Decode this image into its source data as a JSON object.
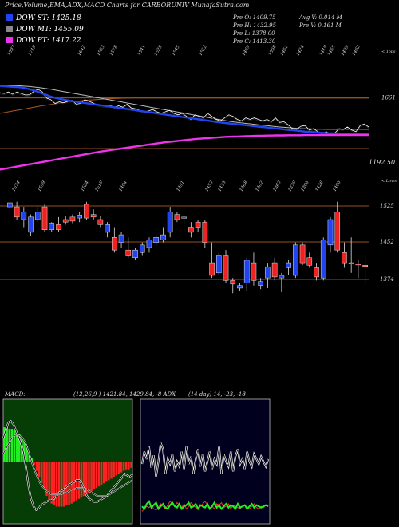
{
  "header": {
    "title": "Price,Volume,EMA,ADX,MACD Charts for CARBORUNIV MunafaSutra.com"
  },
  "legend": [
    {
      "label": "DOW ST: 1425.18",
      "color": "#2244ee"
    },
    {
      "label": "DOW MT: 1455.09",
      "color": "#888888"
    },
    {
      "label": "DOW PT: 1417.22",
      "color": "#ee33ee"
    }
  ],
  "stats": {
    "pre_o": "Pre   O: 1409.75",
    "pre_h": "Pre   H: 1432.95",
    "pre_l": "Pre   L: 1378.00",
    "pre_c": "Pre   C: 1413.30",
    "avg_v": "Avg V: 0.014   M",
    "pre_v": "Pre   V: 0.161 M"
  },
  "ema_panel": {
    "top_labels": [
      "1697",
      "1719",
      "1642",
      "1553",
      "1578",
      "1541",
      "1525",
      "1545",
      "1522",
      "1469",
      "1508",
      "1451",
      "1424",
      "1419",
      "1455",
      "1429",
      "1462"
    ],
    "bottom_labels": [
      "1674",
      "1599",
      "1524",
      "1519",
      "1494",
      "1491",
      "1453",
      "1423",
      "1468",
      "1402",
      "1363",
      "1379",
      "1396",
      "1426",
      "1490"
    ],
    "hline_labels": [
      "1661",
      "1192.50"
    ],
    "corner_label": "< Tops",
    "ema_ylim": [
      1150,
      1780
    ],
    "price_line": [
      1695,
      1690,
      1700,
      1685,
      1700,
      1690,
      1680,
      1682,
      1705,
      1718,
      1700,
      1660,
      1650,
      1625,
      1635,
      1630,
      1640,
      1645,
      1620,
      1625,
      1650,
      1640,
      1628,
      1615,
      1610,
      1605,
      1612,
      1600,
      1610,
      1600,
      1620,
      1595,
      1590,
      1580,
      1570,
      1575,
      1585,
      1570,
      1560,
      1570,
      1580,
      1560,
      1550,
      1560,
      1540,
      1520,
      1550,
      1540,
      1530,
      1560,
      1540,
      1520,
      1510,
      1530,
      1550,
      1540,
      1520,
      1510,
      1530,
      1520,
      1530,
      1520,
      1510,
      1520,
      1505,
      1530,
      1500,
      1505,
      1485,
      1460,
      1455,
      1475,
      1480,
      1450,
      1460,
      1440,
      1425,
      1440,
      1420,
      1430,
      1460,
      1455,
      1470,
      1450,
      1440,
      1480,
      1490,
      1470
    ],
    "ema_blue": [
      1740,
      1738,
      1736,
      1734,
      1732,
      1730,
      1725,
      1718,
      1710,
      1700,
      1690,
      1680,
      1670,
      1662,
      1656,
      1650,
      1645,
      1640,
      1636,
      1632,
      1628,
      1624,
      1620,
      1616,
      1612,
      1608,
      1604,
      1600,
      1596,
      1592,
      1588,
      1584,
      1580,
      1576,
      1572,
      1568,
      1564,
      1560,
      1556,
      1552,
      1548,
      1544,
      1540,
      1536,
      1532,
      1528,
      1524,
      1520,
      1516,
      1512,
      1508,
      1504,
      1500,
      1497,
      1494,
      1491,
      1488,
      1485,
      1482,
      1479,
      1476,
      1473,
      1470,
      1467,
      1464,
      1461,
      1458,
      1455,
      1452,
      1449,
      1446,
      1443,
      1440,
      1438,
      1436,
      1434,
      1432,
      1430,
      1429,
      1428,
      1427,
      1427,
      1426,
      1426,
      1425,
      1425,
      1425,
      1425
    ],
    "ema_grey": [
      1745,
      1744,
      1743,
      1742,
      1741,
      1740,
      1738,
      1736,
      1733,
      1730,
      1726,
      1722,
      1718,
      1713,
      1708,
      1703,
      1698,
      1693,
      1688,
      1683,
      1678,
      1673,
      1668,
      1663,
      1658,
      1653,
      1648,
      1643,
      1638,
      1633,
      1628,
      1623,
      1618,
      1613,
      1608,
      1603,
      1598,
      1593,
      1588,
      1583,
      1578,
      1573,
      1568,
      1563,
      1558,
      1553,
      1548,
      1543,
      1538,
      1533,
      1528,
      1523,
      1518,
      1513,
      1508,
      1504,
      1500,
      1497,
      1494,
      1491,
      1488,
      1485,
      1482,
      1479,
      1476,
      1473,
      1470,
      1468,
      1466,
      1464,
      1462,
      1460,
      1459,
      1458,
      1457,
      1456,
      1456,
      1455,
      1455,
      1455,
      1455,
      1455,
      1455,
      1455,
      1455,
      1455,
      1455,
      1455
    ],
    "ema_magenta": [
      1190,
      1195,
      1200,
      1205,
      1210,
      1215,
      1220,
      1225,
      1230,
      1235,
      1240,
      1245,
      1250,
      1255,
      1260,
      1265,
      1270,
      1275,
      1280,
      1285,
      1290,
      1295,
      1300,
      1305,
      1310,
      1314,
      1318,
      1322,
      1326,
      1330,
      1334,
      1338,
      1342,
      1346,
      1350,
      1354,
      1358,
      1362,
      1366,
      1370,
      1373,
      1376,
      1379,
      1382,
      1385,
      1388,
      1391,
      1393,
      1395,
      1397,
      1399,
      1401,
      1403,
      1405,
      1406,
      1407,
      1408,
      1409,
      1410,
      1411,
      1412,
      1413,
      1413,
      1414,
      1414,
      1415,
      1415,
      1415,
      1416,
      1416,
      1416,
      1416,
      1417,
      1417,
      1417,
      1417,
      1417,
      1417,
      1417,
      1417,
      1417,
      1417,
      1417,
      1417,
      1417,
      1417,
      1417,
      1417
    ],
    "ema_orange": [
      1560,
      1565,
      1570,
      1575,
      1580,
      1585,
      1590,
      1595,
      1600,
      1605,
      1610,
      1614,
      1618,
      1622,
      1626,
      1630,
      1633,
      1636,
      1639,
      1642,
      1645,
      1647,
      1649,
      1651,
      1653,
      1655,
      1656,
      1657,
      1658,
      1659,
      1660,
      1660,
      1661,
      1661,
      1661,
      1661,
      1661,
      1661,
      1661,
      1661,
      1661,
      1661,
      1661,
      1661,
      1661,
      1661,
      1661,
      1661,
      1661,
      1661,
      1661,
      1661,
      1661,
      1661,
      1661,
      1661,
      1661,
      1661,
      1661,
      1661,
      1661,
      1661,
      1661,
      1661,
      1661,
      1661,
      1661,
      1661,
      1661,
      1661,
      1661,
      1661,
      1661,
      1661,
      1661,
      1661,
      1661,
      1661,
      1661,
      1661,
      1661,
      1661,
      1661,
      1661,
      1661,
      1661,
      1661,
      1661
    ]
  },
  "candle_panel": {
    "hline_labels": [
      "1525",
      "1452",
      "1374"
    ],
    "corner_label": "< Lows",
    "ylim": [
      1340,
      1560
    ],
    "candles": [
      {
        "o": 1530,
        "h": 1545,
        "l": 1520,
        "c": 1538
      },
      {
        "o": 1530,
        "h": 1540,
        "l": 1505,
        "c": 1510
      },
      {
        "o": 1505,
        "h": 1530,
        "l": 1490,
        "c": 1520
      },
      {
        "o": 1480,
        "h": 1515,
        "l": 1472,
        "c": 1510
      },
      {
        "o": 1505,
        "h": 1530,
        "l": 1500,
        "c": 1520
      },
      {
        "o": 1530,
        "h": 1535,
        "l": 1480,
        "c": 1485
      },
      {
        "o": 1485,
        "h": 1500,
        "l": 1480,
        "c": 1498
      },
      {
        "o": 1495,
        "h": 1510,
        "l": 1480,
        "c": 1485
      },
      {
        "o": 1505,
        "h": 1512,
        "l": 1495,
        "c": 1500
      },
      {
        "o": 1510,
        "h": 1515,
        "l": 1498,
        "c": 1502
      },
      {
        "o": 1508,
        "h": 1520,
        "l": 1500,
        "c": 1514
      },
      {
        "o": 1535,
        "h": 1540,
        "l": 1505,
        "c": 1508
      },
      {
        "o": 1515,
        "h": 1525,
        "l": 1505,
        "c": 1510
      },
      {
        "o": 1505,
        "h": 1512,
        "l": 1490,
        "c": 1495
      },
      {
        "o": 1480,
        "h": 1500,
        "l": 1470,
        "c": 1495
      },
      {
        "o": 1470,
        "h": 1490,
        "l": 1440,
        "c": 1445
      },
      {
        "o": 1460,
        "h": 1480,
        "l": 1450,
        "c": 1475
      },
      {
        "o": 1445,
        "h": 1470,
        "l": 1430,
        "c": 1435
      },
      {
        "o": 1430,
        "h": 1450,
        "l": 1425,
        "c": 1445
      },
      {
        "o": 1440,
        "h": 1460,
        "l": 1435,
        "c": 1455
      },
      {
        "o": 1450,
        "h": 1470,
        "l": 1440,
        "c": 1465
      },
      {
        "o": 1460,
        "h": 1475,
        "l": 1455,
        "c": 1470
      },
      {
        "o": 1465,
        "h": 1490,
        "l": 1460,
        "c": 1475
      },
      {
        "o": 1480,
        "h": 1530,
        "l": 1470,
        "c": 1520
      },
      {
        "o": 1515,
        "h": 1520,
        "l": 1500,
        "c": 1505
      },
      {
        "o": 1510,
        "h": 1515,
        "l": 1495,
        "c": 1510
      },
      {
        "o": 1490,
        "h": 1500,
        "l": 1470,
        "c": 1480
      },
      {
        "o": 1500,
        "h": 1505,
        "l": 1480,
        "c": 1490
      },
      {
        "o": 1500,
        "h": 1505,
        "l": 1450,
        "c": 1460
      },
      {
        "o": 1420,
        "h": 1460,
        "l": 1390,
        "c": 1395
      },
      {
        "o": 1400,
        "h": 1440,
        "l": 1395,
        "c": 1435
      },
      {
        "o": 1435,
        "h": 1445,
        "l": 1380,
        "c": 1385
      },
      {
        "o": 1385,
        "h": 1390,
        "l": 1360,
        "c": 1378
      },
      {
        "o": 1370,
        "h": 1380,
        "l": 1365,
        "c": 1375
      },
      {
        "o": 1380,
        "h": 1430,
        "l": 1365,
        "c": 1425
      },
      {
        "o": 1420,
        "h": 1440,
        "l": 1375,
        "c": 1385
      },
      {
        "o": 1375,
        "h": 1390,
        "l": 1368,
        "c": 1383
      },
      {
        "o": 1390,
        "h": 1420,
        "l": 1370,
        "c": 1412
      },
      {
        "o": 1420,
        "h": 1430,
        "l": 1385,
        "c": 1392
      },
      {
        "o": 1390,
        "h": 1400,
        "l": 1362,
        "c": 1395
      },
      {
        "o": 1410,
        "h": 1425,
        "l": 1395,
        "c": 1420
      },
      {
        "o": 1395,
        "h": 1460,
        "l": 1390,
        "c": 1455
      },
      {
        "o": 1455,
        "h": 1460,
        "l": 1415,
        "c": 1420
      },
      {
        "o": 1430,
        "h": 1440,
        "l": 1410,
        "c": 1415
      },
      {
        "o": 1410,
        "h": 1420,
        "l": 1385,
        "c": 1392
      },
      {
        "o": 1390,
        "h": 1470,
        "l": 1385,
        "c": 1465
      },
      {
        "o": 1455,
        "h": 1510,
        "l": 1440,
        "c": 1505
      },
      {
        "o": 1520,
        "h": 1540,
        "l": 1440,
        "c": 1445
      },
      {
        "o": 1440,
        "h": 1460,
        "l": 1410,
        "c": 1420
      },
      {
        "o": 1420,
        "h": 1470,
        "l": 1400,
        "c": 1418
      },
      {
        "o": 1418,
        "h": 1425,
        "l": 1390,
        "c": 1416
      },
      {
        "o": 1415,
        "h": 1432,
        "l": 1378,
        "c": 1413
      }
    ]
  },
  "macd_panel": {
    "label": "MACD:",
    "values_text": "(12,26,9 ) 1421.84, 1429.84, -8  ADX",
    "ylim": [
      -4,
      4
    ],
    "hist": [
      2.2,
      2.2,
      2.1,
      2.1,
      2.0,
      1.9,
      1.8,
      1.6,
      1.3,
      1.0,
      0.6,
      0.2,
      -0.2,
      -0.6,
      -1.0,
      -1.4,
      -1.8,
      -2.2,
      -2.5,
      -2.7,
      -2.8,
      -2.9,
      -2.9,
      -2.9,
      -2.9,
      -2.8,
      -2.8,
      -2.7,
      -2.6,
      -2.5,
      -2.4,
      -2.3,
      -2.2,
      -2.1,
      -2.0,
      -1.9,
      -1.8,
      -1.7,
      -1.6,
      -1.5,
      -1.4,
      -1.3,
      -1.2,
      -1.1,
      -1.0,
      -0.9,
      -0.8,
      -0.7,
      -0.6,
      -0.5,
      -0.5,
      -0.4
    ],
    "macd": [
      1.5,
      2.0,
      2.5,
      2.6,
      2.4,
      2.0,
      1.6,
      1.2,
      0.6,
      -0.4,
      -1.6,
      -2.4,
      -2.9,
      -3.1,
      -3.0,
      -2.8,
      -2.7,
      -2.6,
      -2.5,
      -2.5,
      -2.4,
      -2.2,
      -2.0,
      -1.9,
      -1.8,
      -1.6,
      -1.5,
      -1.4,
      -1.3,
      -1.2,
      -1.2,
      -1.4,
      -1.8,
      -2.2,
      -2.4,
      -2.5,
      -2.6,
      -2.6,
      -2.5,
      -2.4,
      -2.3,
      -2.2,
      -2.0,
      -1.8,
      -1.6,
      -1.4,
      -1.2,
      -1.0,
      -0.8,
      -0.9,
      -1.0,
      -0.8
    ],
    "signal": [
      0.5,
      0.8,
      1.1,
      1.4,
      1.6,
      1.7,
      1.7,
      1.6,
      1.4,
      1.1,
      0.6,
      0.1,
      -0.4,
      -0.8,
      -1.2,
      -1.5,
      -1.7,
      -1.9,
      -2.0,
      -2.1,
      -2.1,
      -2.1,
      -2.1,
      -2.1,
      -2.0,
      -2.0,
      -1.9,
      -1.8,
      -1.8,
      -1.7,
      -1.7,
      -1.7,
      -1.7,
      -1.8,
      -1.9,
      -2.0,
      -2.1,
      -2.2,
      -2.2,
      -2.2,
      -2.2,
      -2.2,
      -2.1,
      -2.0,
      -1.9,
      -1.8,
      -1.7,
      -1.6,
      -1.5,
      -1.4,
      -1.3,
      -1.2
    ]
  },
  "adx_panel": {
    "values_text": "(14  day) 14,  -23,  -18",
    "ylim": [
      0,
      100
    ],
    "adx": [
      48,
      58,
      52,
      62,
      45,
      55,
      38,
      50,
      65,
      60,
      40,
      52,
      48,
      56,
      42,
      50,
      46,
      58,
      44,
      62,
      48,
      54,
      40,
      52,
      60,
      46,
      56,
      42,
      50,
      58,
      44,
      52,
      48,
      62,
      40,
      56,
      50,
      46,
      58,
      42,
      54,
      60,
      48,
      52,
      44,
      58,
      50,
      46,
      56,
      52,
      48,
      54,
      50,
      46,
      52
    ],
    "pdi": [
      14,
      12,
      16,
      18,
      13,
      15,
      17,
      12,
      14,
      16,
      13,
      12,
      15,
      17,
      14,
      13,
      16,
      12,
      14,
      15,
      17,
      13,
      14,
      16,
      12,
      15,
      14,
      13,
      16,
      12,
      14,
      17,
      13,
      15,
      12,
      14,
      16,
      13,
      15,
      14,
      12,
      16,
      13,
      14,
      15,
      12,
      14,
      16,
      13,
      15,
      14,
      13,
      14,
      15,
      14
    ],
    "mdi": [
      10,
      12,
      14,
      13,
      15,
      12,
      11,
      13,
      16,
      14,
      12,
      15,
      18,
      16,
      14,
      17,
      15,
      13,
      16,
      12,
      14,
      17,
      15,
      13,
      12,
      14,
      16,
      18,
      15,
      13,
      14,
      12,
      16,
      15,
      17,
      13,
      14,
      16,
      12,
      15,
      14,
      13,
      12,
      14,
      15,
      13,
      12,
      14,
      16,
      13,
      12,
      14,
      13,
      15,
      14
    ]
  }
}
